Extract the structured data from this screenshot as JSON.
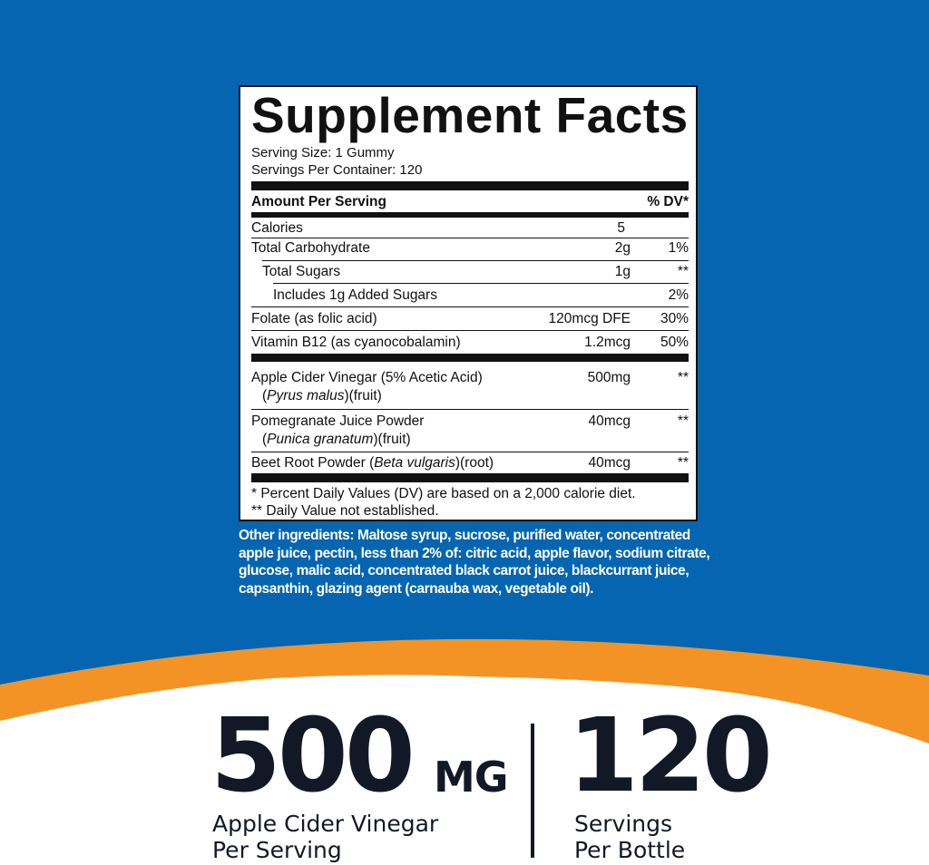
{
  "colors": {
    "background_blue": "#0565b0",
    "accent_orange": "#f39325",
    "text_dark": "#121826"
  },
  "facts": {
    "title": "Supplement Facts",
    "serving_size": "Serving Size: 1 Gummy",
    "servings_per_container": "Servings Per Container: 120",
    "header_amount": "Amount Per Serving",
    "header_dv": "% DV*",
    "rows": [
      {
        "name": "Calories",
        "amount": "5",
        "dv": ""
      },
      {
        "name": "Total Carbohydrate",
        "amount": "2g",
        "dv": "1%"
      },
      {
        "name": "Total Sugars",
        "amount": "1g",
        "dv": "**"
      },
      {
        "name": "Includes 1g Added Sugars",
        "amount": "",
        "dv": "2%"
      },
      {
        "name": "Folate (as folic acid)",
        "amount": "120mcg DFE",
        "dv": "30%"
      },
      {
        "name": "Vitamin B12 (as cyanocobalamin)",
        "amount": "1.2mcg",
        "dv": "50%"
      }
    ],
    "botanicals": [
      {
        "name": "Apple Cider Vinegar (5% Acetic Acid)",
        "latin": "Pyrus malus",
        "part": "(fruit)",
        "amount": "500mg",
        "dv": "**"
      },
      {
        "name": "Pomegranate Juice Powder",
        "latin": "Punica granatum",
        "part": "(fruit)",
        "amount": "40mcg",
        "dv": "**"
      },
      {
        "name": "Beet Root Powder (",
        "latin": "Beta vulgaris",
        "part": ")(root)",
        "amount": "40mcg",
        "dv": "**"
      }
    ],
    "footnote1": "* Percent Daily Values (DV) are based on a 2,000 calorie diet.",
    "footnote2": "** Daily Value not established."
  },
  "other_ingredients": "Other ingredients: Maltose syrup, sucrose, purified water, concentrated apple juice, pectin, less than 2% of: citric acid, apple flavor, sodium citrate, glucose, malic acid, concentrated black carrot juice, blackcurrant juice, capsanthin, glazing agent (carnauba wax, vegetable oil).",
  "highlights": {
    "dose_value": "500",
    "dose_unit": "MG",
    "dose_caption_1": "Apple Cider Vinegar",
    "dose_caption_2": "Per Serving",
    "servings_value": "120",
    "servings_caption_1": "Servings",
    "servings_caption_2": "Per Bottle"
  }
}
